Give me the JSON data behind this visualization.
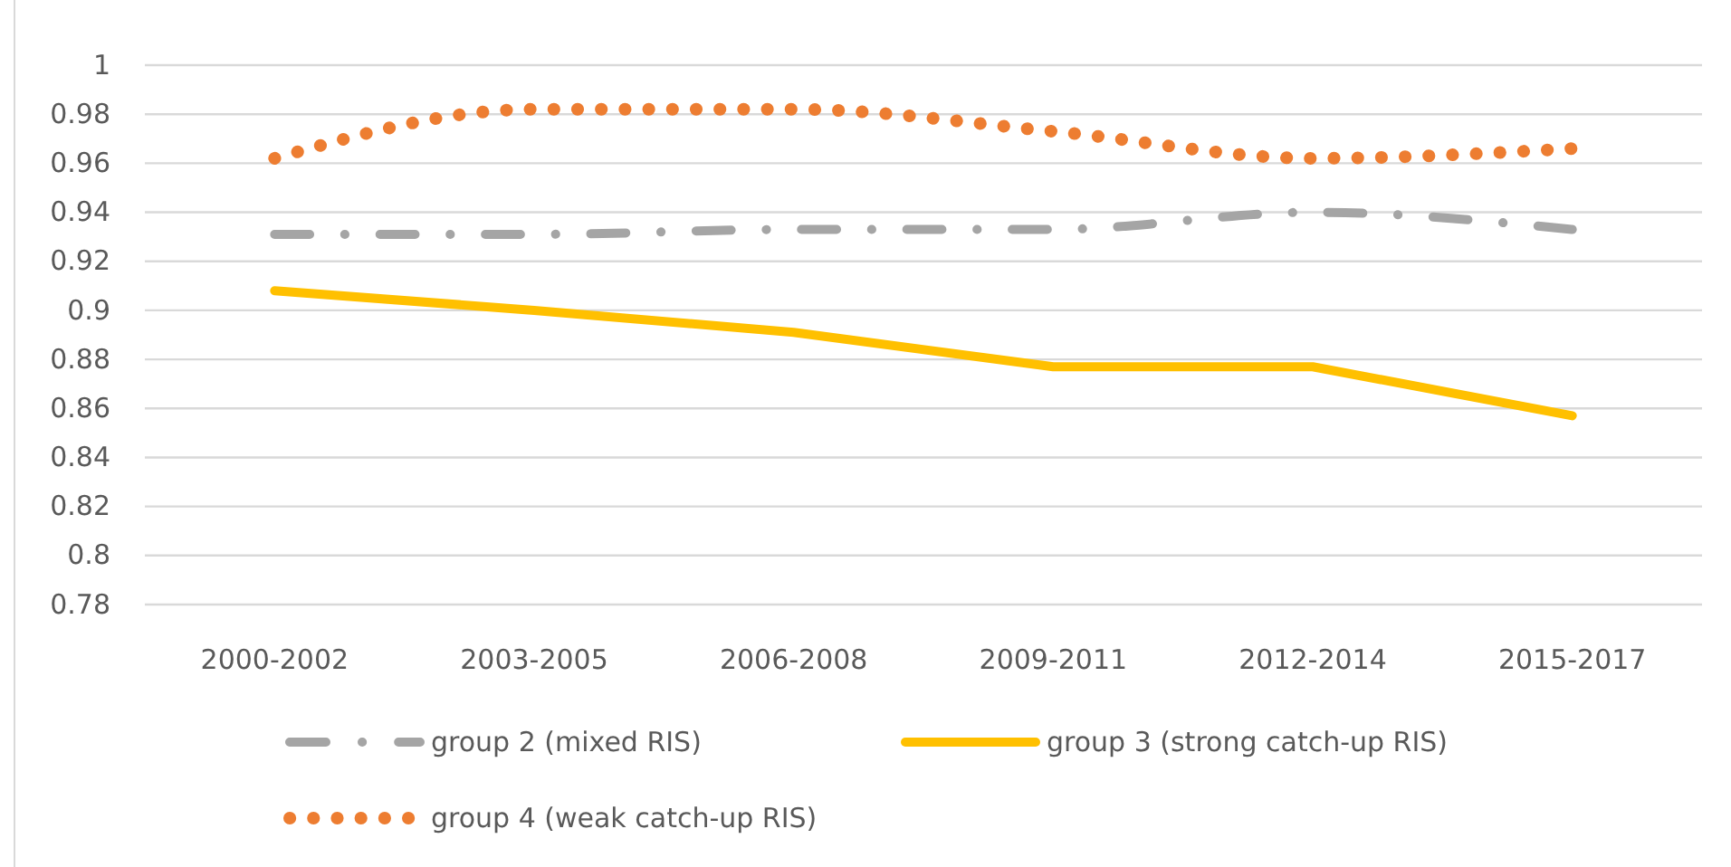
{
  "chart_data": {
    "type": "line",
    "categories": [
      "2000-2002",
      "2003-2005",
      "2006-2008",
      "2009-2011",
      "2012-2014",
      "2015-2017"
    ],
    "series": [
      {
        "name": "group 2 (mixed RIS)",
        "color": "#a5a5a5",
        "line_style": "dashed",
        "values": [
          0.931,
          0.931,
          0.933,
          0.933,
          0.94,
          0.933
        ]
      },
      {
        "name": "group 3 (strong catch-up RIS)",
        "color": "#ffc000",
        "line_style": "solid",
        "values": [
          0.908,
          0.9,
          0.891,
          0.877,
          0.877,
          0.857
        ]
      },
      {
        "name": "group 4 (weak catch-up RIS)",
        "color": "#ed7d31",
        "line_style": "dotted",
        "values": [
          0.962,
          0.982,
          0.982,
          0.973,
          0.962,
          0.966
        ]
      }
    ],
    "ylim": [
      0.78,
      1
    ],
    "yticks": [
      0.78,
      0.8,
      0.82,
      0.84,
      0.86,
      0.88,
      0.9,
      0.92,
      0.94,
      0.96,
      0.98,
      1
    ],
    "grid": "y",
    "legend": "bottom",
    "marker": "none"
  }
}
